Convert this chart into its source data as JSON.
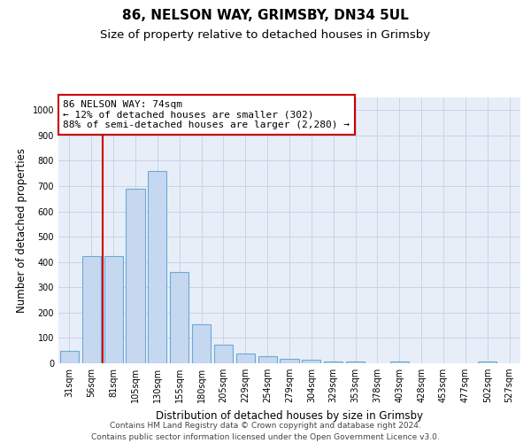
{
  "title1": "86, NELSON WAY, GRIMSBY, DN34 5UL",
  "title2": "Size of property relative to detached houses in Grimsby",
  "xlabel": "Distribution of detached houses by size in Grimsby",
  "ylabel": "Number of detached properties",
  "bar_labels": [
    "31sqm",
    "56sqm",
    "81sqm",
    "105sqm",
    "130sqm",
    "155sqm",
    "180sqm",
    "205sqm",
    "229sqm",
    "254sqm",
    "279sqm",
    "304sqm",
    "329sqm",
    "353sqm",
    "378sqm",
    "403sqm",
    "428sqm",
    "453sqm",
    "477sqm",
    "502sqm",
    "527sqm"
  ],
  "bar_values": [
    50,
    425,
    425,
    690,
    760,
    360,
    155,
    75,
    40,
    28,
    18,
    13,
    8,
    8,
    0,
    8,
    0,
    0,
    0,
    8,
    0
  ],
  "bar_color": "#c5d8f0",
  "bar_edge_color": "#6aaad4",
  "vline_x": 1.5,
  "vline_color": "#cc0000",
  "annotation_line1": "86 NELSON WAY: 74sqm",
  "annotation_line2": "← 12% of detached houses are smaller (302)",
  "annotation_line3": "88% of semi-detached houses are larger (2,280) →",
  "annotation_box_color": "#ffffff",
  "annotation_box_edge": "#cc0000",
  "ylim": [
    0,
    1050
  ],
  "yticks": [
    0,
    100,
    200,
    300,
    400,
    500,
    600,
    700,
    800,
    900,
    1000
  ],
  "grid_color": "#c8d4e8",
  "bg_color": "#e8eef8",
  "footer": "Contains HM Land Registry data © Crown copyright and database right 2024.\nContains public sector information licensed under the Open Government Licence v3.0.",
  "title1_fontsize": 11,
  "title2_fontsize": 9.5,
  "xlabel_fontsize": 8.5,
  "ylabel_fontsize": 8.5,
  "tick_fontsize": 7,
  "annotation_fontsize": 8,
  "footer_fontsize": 6.5
}
